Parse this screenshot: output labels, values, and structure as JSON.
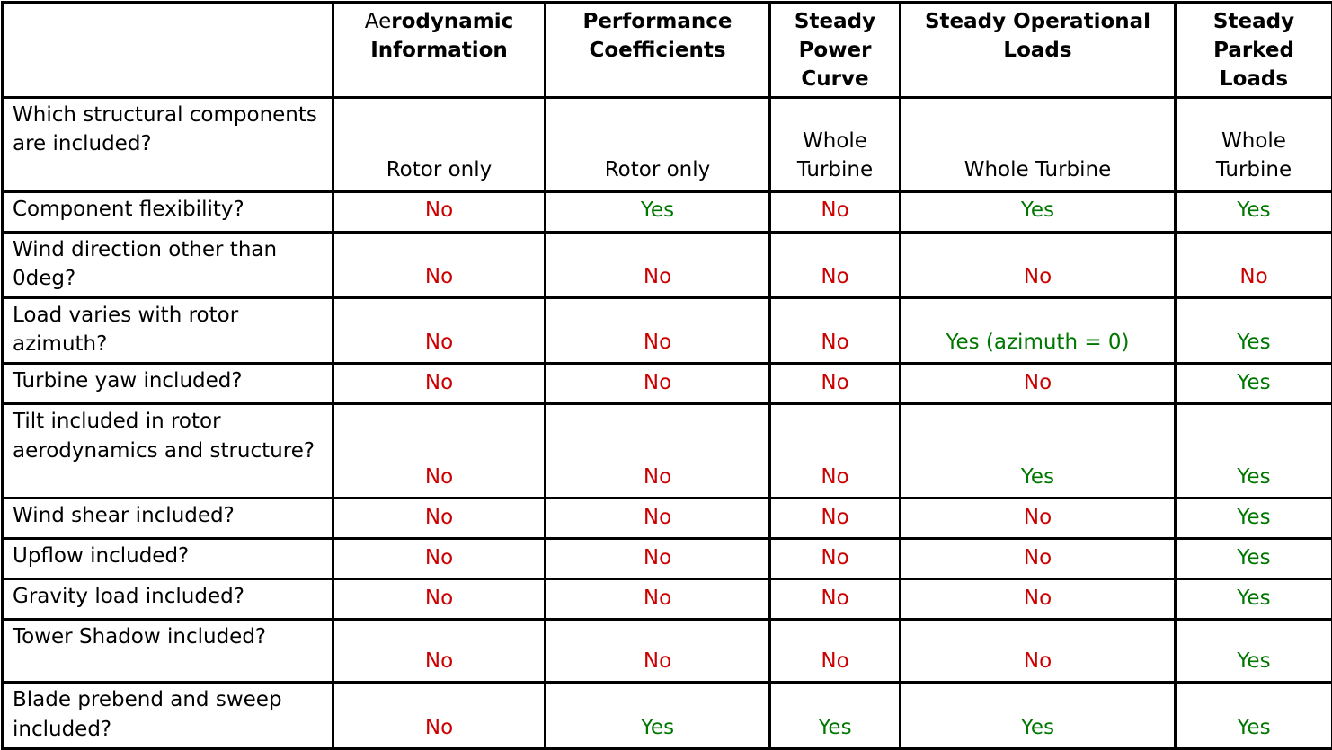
{
  "table": {
    "columns": [
      {
        "normal": "",
        "bold": ""
      },
      {
        "normal": "Ae",
        "bold": "rodynamic Information"
      },
      {
        "normal": "",
        "bold": "Performance Coefficients"
      },
      {
        "normal": "",
        "bold": "Steady Power Curve"
      },
      {
        "normal": "",
        "bold": "Steady Operational Loads"
      },
      {
        "normal": "",
        "bold": "Steady Parked Loads"
      }
    ],
    "rows": [
      {
        "label": "Which structural components are included?",
        "values": [
          "Rotor only",
          "Rotor only",
          "Whole Turbine",
          "Whole Turbine",
          "Whole Turbine"
        ]
      },
      {
        "label": "Component flexibility?",
        "values": [
          "No",
          "Yes",
          "No",
          "Yes",
          "Yes"
        ]
      },
      {
        "label": "Wind direction other than 0deg?",
        "values": [
          "No",
          "No",
          "No",
          "No",
          "No"
        ]
      },
      {
        "label": "Load varies with rotor azimuth?",
        "values": [
          "No",
          "No",
          "No",
          "Yes (azimuth = 0)",
          "Yes"
        ]
      },
      {
        "label": "Turbine yaw included?",
        "values": [
          "No",
          "No",
          "No",
          "No",
          "Yes"
        ]
      },
      {
        "label": "Tilt included in rotor aerodynamics and structure?",
        "values": [
          "No",
          "No",
          "No",
          "Yes",
          "Yes"
        ]
      },
      {
        "label": "Wind shear included?",
        "values": [
          "No",
          "No",
          "No",
          "No",
          "Yes"
        ]
      },
      {
        "label": "Upflow included?",
        "values": [
          "No",
          "No",
          "No",
          "No",
          "Yes"
        ]
      },
      {
        "label": "Gravity load included?",
        "values": [
          "No",
          "No",
          "No",
          "No",
          "Yes"
        ]
      },
      {
        "label": "Tower Shadow included?",
        "values": [
          "No",
          "No",
          "No",
          "No",
          "Yes"
        ]
      },
      {
        "label": "Blade prebend and sweep included?",
        "values": [
          "No",
          "Yes",
          "Yes",
          "Yes",
          "Yes"
        ]
      }
    ]
  },
  "colors": {
    "yes_text": "#007700",
    "no_text": "#cc0000",
    "border": "#000000"
  }
}
